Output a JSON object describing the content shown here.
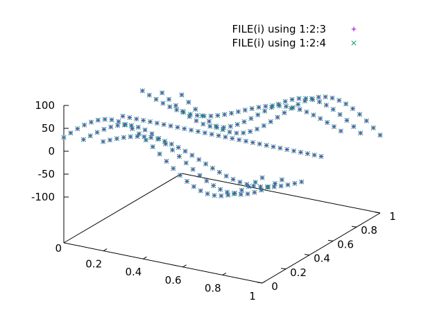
{
  "chart_data": {
    "type": "scatter",
    "title": "",
    "xlabel": "",
    "ylabel": "",
    "zlabel": "",
    "xlim": [
      0,
      1
    ],
    "ylim": [
      0,
      1
    ],
    "zlim": [
      -100,
      100
    ],
    "x_ticks": [
      "0.2",
      "0.4",
      "0.6",
      "0.8",
      "1"
    ],
    "y_ticks": [
      "0",
      "0.2",
      "0.4",
      "0.6",
      "0.8",
      "1"
    ],
    "z_ticks": [
      "100",
      "50",
      "0",
      "-50",
      "-100"
    ],
    "origin_label": "0",
    "legend_position": "top-right",
    "grid": false,
    "series": [
      {
        "name": "FILE(i) using 1:2:3",
        "marker": "plus",
        "color": "#9400d3",
        "grid_x": 30,
        "grid_y": 7,
        "formula": "z = 60*sin(2*pi*x)*cos(pi*y) + 30*cos(3*pi*y)"
      },
      {
        "name": "FILE(i) using 1:2:4",
        "marker": "cross",
        "color": "#009e73",
        "grid_x": 30,
        "grid_y": 7,
        "formula": "z = 60*sin(2*pi*x)*cos(pi*y) + 30*cos(3*pi*y)"
      }
    ]
  }
}
